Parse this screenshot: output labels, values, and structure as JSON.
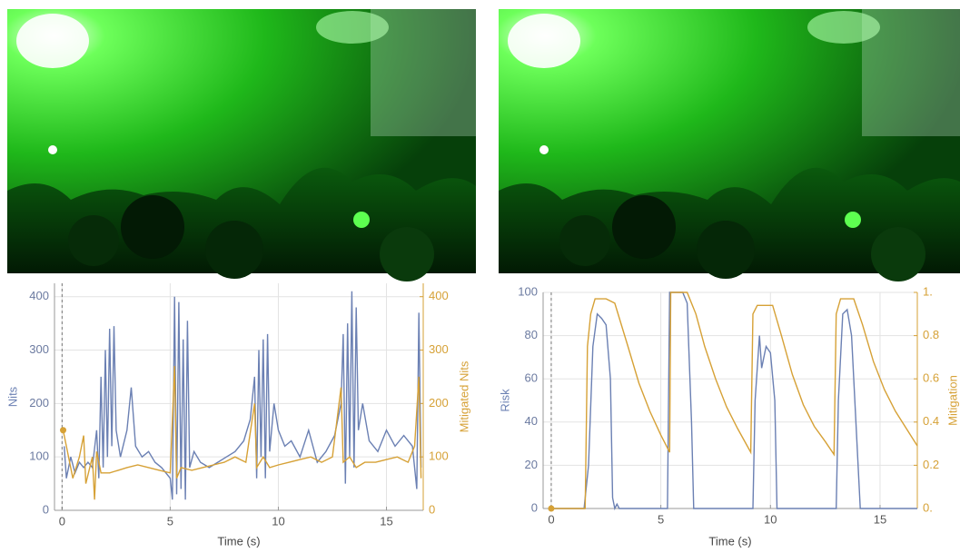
{
  "chart_data": [
    {
      "type": "line",
      "xlabel": "Time (s)",
      "ylabel": "Nits",
      "y2label": "Mitigated Nits",
      "xlim": [
        -0.35,
        16.7
      ],
      "xticks": [
        0,
        5,
        10,
        15
      ],
      "ylim": [
        0,
        425
      ],
      "yticks": [
        0,
        100,
        200,
        300,
        400
      ],
      "y2lim": [
        0,
        425
      ],
      "y2ticks": [
        0,
        100,
        200,
        300,
        400
      ],
      "grid": true,
      "series": [
        {
          "color": "#6b80b3",
          "axis": "y",
          "x": [
            0.1,
            0.2,
            0.4,
            0.6,
            0.8,
            1.0,
            1.2,
            1.4,
            1.6,
            1.7,
            1.8,
            1.9,
            2.0,
            2.1,
            2.2,
            2.3,
            2.4,
            2.5,
            2.7,
            3.0,
            3.2,
            3.4,
            3.7,
            4.0,
            4.3,
            4.6,
            5.0,
            5.1,
            5.2,
            5.3,
            5.4,
            5.5,
            5.6,
            5.7,
            5.8,
            5.9,
            6.1,
            6.4,
            6.8,
            7.2,
            7.6,
            8.0,
            8.4,
            8.7,
            8.9,
            9.0,
            9.1,
            9.2,
            9.3,
            9.4,
            9.5,
            9.6,
            9.8,
            10.0,
            10.3,
            10.6,
            11.0,
            11.4,
            11.8,
            12.2,
            12.6,
            12.9,
            13.0,
            13.1,
            13.2,
            13.3,
            13.4,
            13.5,
            13.6,
            13.7,
            13.9,
            14.2,
            14.6,
            15.0,
            15.4,
            15.8,
            16.2,
            16.4,
            16.5,
            16.6
          ],
          "values": [
            120,
            60,
            100,
            70,
            90,
            80,
            90,
            80,
            150,
            60,
            250,
            80,
            300,
            100,
            340,
            120,
            345,
            150,
            100,
            150,
            230,
            120,
            100,
            110,
            90,
            80,
            60,
            20,
            400,
            30,
            390,
            40,
            320,
            20,
            355,
            80,
            110,
            90,
            80,
            90,
            100,
            110,
            130,
            170,
            250,
            60,
            300,
            100,
            320,
            60,
            330,
            110,
            200,
            150,
            120,
            130,
            100,
            150,
            90,
            110,
            140,
            200,
            330,
            50,
            350,
            100,
            410,
            80,
            380,
            150,
            200,
            130,
            110,
            150,
            120,
            140,
            120,
            40,
            370,
            80
          ]
        },
        {
          "color": "#d6a136",
          "axis": "y2",
          "x": [
            0.05,
            0.2,
            0.5,
            0.8,
            1.0,
            1.1,
            1.4,
            1.5,
            1.6,
            1.8,
            2.2,
            2.6,
            3.0,
            3.5,
            4.0,
            4.5,
            5.0,
            5.2,
            5.3,
            5.5,
            6.0,
            6.5,
            7.0,
            7.5,
            8.0,
            8.5,
            8.9,
            9.0,
            9.3,
            9.6,
            10.0,
            10.5,
            11.0,
            11.5,
            12.0,
            12.5,
            12.9,
            13.0,
            13.3,
            13.6,
            14.0,
            14.5,
            15.0,
            15.5,
            16.0,
            16.3,
            16.5,
            16.6
          ],
          "values": [
            150,
            120,
            60,
            100,
            140,
            50,
            100,
            20,
            110,
            70,
            70,
            75,
            80,
            85,
            80,
            75,
            70,
            270,
            60,
            80,
            75,
            80,
            85,
            90,
            100,
            90,
            200,
            80,
            100,
            80,
            85,
            90,
            95,
            100,
            90,
            100,
            230,
            90,
            100,
            80,
            90,
            90,
            95,
            100,
            90,
            120,
            250,
            60
          ]
        }
      ]
    },
    {
      "type": "line",
      "xlabel": "Time (s)",
      "ylabel": "Risk",
      "y2label": "Mitigation",
      "xlim": [
        -0.37,
        16.7
      ],
      "xticks": [
        0,
        5,
        10,
        15
      ],
      "ylim": [
        0,
        100
      ],
      "yticks": [
        0,
        20,
        40,
        60,
        80,
        100
      ],
      "y2lim": [
        0,
        1
      ],
      "y2ticks": [
        {
          "value": 0,
          "label": "0."
        },
        0.2,
        0.4,
        0.6,
        0.8,
        {
          "value": 1,
          "label": "1."
        }
      ],
      "grid": true,
      "series": [
        {
          "color": "#6b80b3",
          "axis": "y",
          "x": [
            0,
            1.5,
            1.7,
            1.9,
            2.1,
            2.3,
            2.5,
            2.7,
            2.8,
            2.9,
            3.0,
            3.1,
            5.3,
            5.4,
            5.6,
            6.0,
            6.2,
            6.4,
            6.5,
            9.2,
            9.3,
            9.5,
            9.6,
            9.8,
            10.0,
            10.2,
            10.3,
            13.0,
            13.1,
            13.3,
            13.5,
            13.7,
            13.9,
            14.1,
            16.7
          ],
          "values": [
            0,
            0,
            20,
            75,
            90,
            88,
            85,
            60,
            5,
            0,
            2,
            0,
            0,
            100,
            100,
            100,
            95,
            40,
            0,
            0,
            50,
            80,
            65,
            75,
            72,
            50,
            0,
            0,
            50,
            90,
            92,
            80,
            40,
            0,
            0
          ]
        },
        {
          "color": "#d6a136",
          "axis": "y2",
          "x": [
            0,
            1.55,
            1.65,
            1.8,
            2.0,
            2.5,
            2.9,
            3.5,
            4.0,
            4.5,
            5.0,
            5.4,
            5.45,
            6.2,
            6.6,
            7.0,
            7.5,
            8.0,
            8.5,
            9.1,
            9.2,
            9.4,
            10.1,
            10.5,
            11.0,
            11.5,
            12.0,
            12.5,
            12.9,
            13.0,
            13.2,
            13.8,
            14.2,
            14.7,
            15.2,
            15.7,
            16.2,
            16.7
          ],
          "values": [
            0,
            0,
            0.75,
            0.9,
            0.97,
            0.97,
            0.95,
            0.75,
            0.58,
            0.45,
            0.34,
            0.26,
            1.0,
            1.0,
            0.9,
            0.75,
            0.6,
            0.47,
            0.37,
            0.26,
            0.9,
            0.94,
            0.94,
            0.8,
            0.62,
            0.48,
            0.38,
            0.31,
            0.25,
            0.9,
            0.97,
            0.97,
            0.85,
            0.68,
            0.55,
            0.45,
            0.37,
            0.29
          ]
        }
      ]
    }
  ]
}
